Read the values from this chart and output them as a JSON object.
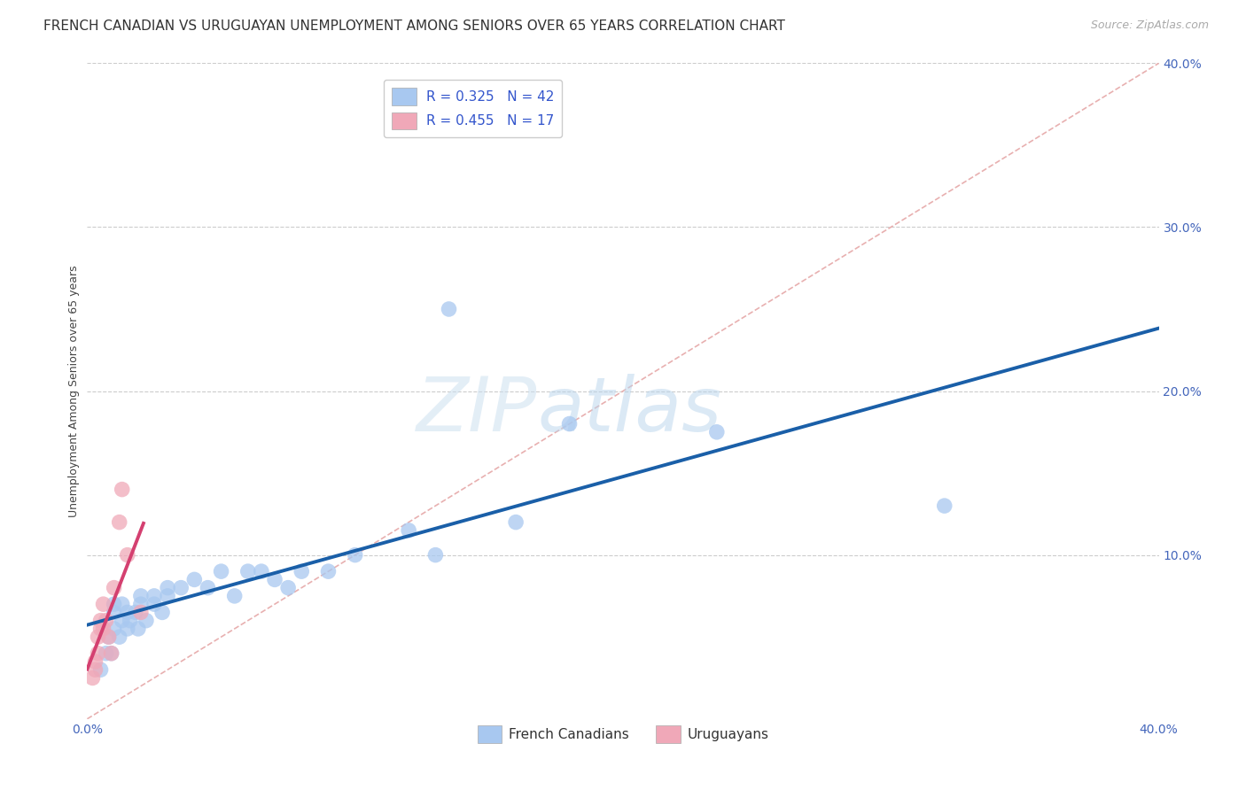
{
  "title": "FRENCH CANADIAN VS URUGUAYAN UNEMPLOYMENT AMONG SENIORS OVER 65 YEARS CORRELATION CHART",
  "source": "Source: ZipAtlas.com",
  "ylabel": "Unemployment Among Seniors over 65 years",
  "xlim": [
    0.0,
    0.4
  ],
  "ylim": [
    0.0,
    0.4
  ],
  "french_canadians": {
    "x": [
      0.005,
      0.007,
      0.008,
      0.009,
      0.01,
      0.01,
      0.01,
      0.012,
      0.013,
      0.013,
      0.015,
      0.015,
      0.016,
      0.018,
      0.019,
      0.02,
      0.02,
      0.022,
      0.025,
      0.025,
      0.028,
      0.03,
      0.03,
      0.035,
      0.04,
      0.045,
      0.05,
      0.055,
      0.06,
      0.065,
      0.07,
      0.075,
      0.08,
      0.09,
      0.1,
      0.12,
      0.13,
      0.135,
      0.16,
      0.18,
      0.235,
      0.32
    ],
    "y": [
      0.03,
      0.04,
      0.05,
      0.04,
      0.055,
      0.065,
      0.07,
      0.05,
      0.06,
      0.07,
      0.055,
      0.065,
      0.06,
      0.065,
      0.055,
      0.07,
      0.075,
      0.06,
      0.07,
      0.075,
      0.065,
      0.075,
      0.08,
      0.08,
      0.085,
      0.08,
      0.09,
      0.075,
      0.09,
      0.09,
      0.085,
      0.08,
      0.09,
      0.09,
      0.1,
      0.115,
      0.1,
      0.25,
      0.12,
      0.18,
      0.175,
      0.13
    ],
    "R": 0.325,
    "N": 42,
    "color": "#a8c8f0",
    "line_color": "#1a5fa8",
    "label": "French Canadians"
  },
  "uruguayans": {
    "x": [
      0.002,
      0.003,
      0.003,
      0.004,
      0.004,
      0.005,
      0.005,
      0.006,
      0.006,
      0.007,
      0.008,
      0.009,
      0.01,
      0.012,
      0.013,
      0.015,
      0.02
    ],
    "y": [
      0.025,
      0.03,
      0.035,
      0.04,
      0.05,
      0.055,
      0.06,
      0.055,
      0.07,
      0.06,
      0.05,
      0.04,
      0.08,
      0.12,
      0.14,
      0.1,
      0.065
    ],
    "R": 0.455,
    "N": 17,
    "color": "#f0a8b8",
    "line_color": "#d44070",
    "label": "Uruguayans"
  },
  "diagonal_color": "#e8b0b0",
  "grid_color": "#cccccc",
  "background_color": "#ffffff",
  "title_fontsize": 11,
  "axis_label_fontsize": 9,
  "tick_fontsize": 10,
  "legend_fontsize": 11,
  "source_fontsize": 9,
  "watermark_zip_color": "#c8dff0",
  "watermark_atlas_color": "#c8dff0"
}
